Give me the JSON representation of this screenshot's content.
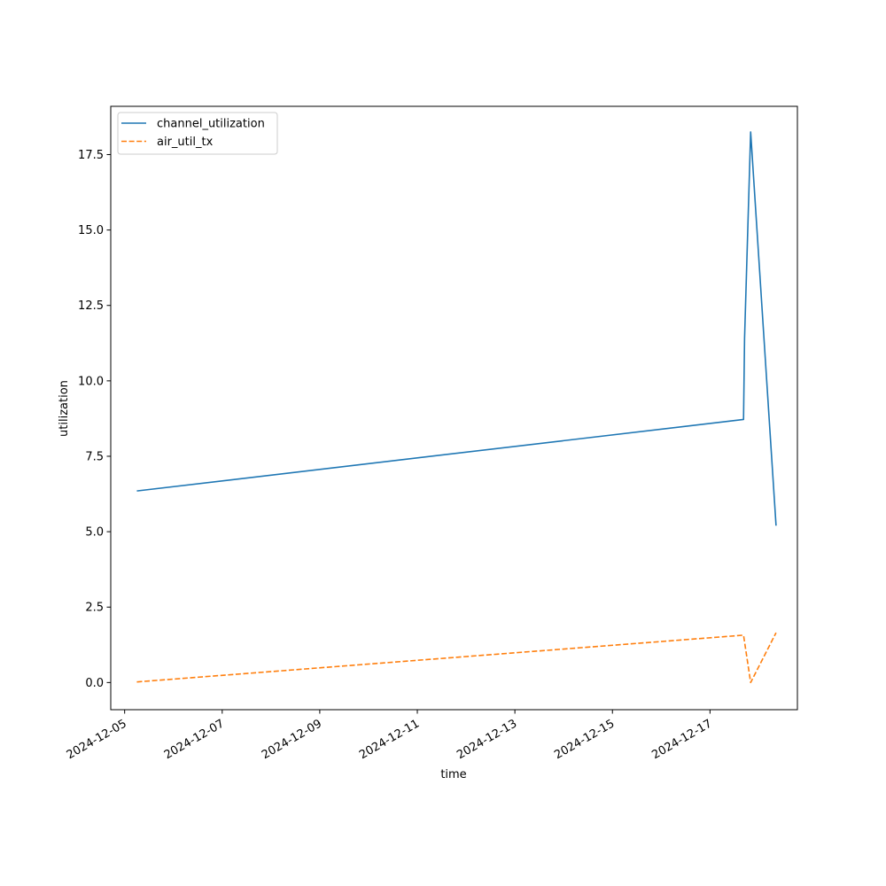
{
  "chart_data": {
    "type": "line",
    "xlabel": "time",
    "ylabel": "utilization",
    "xlim": [
      "2024-12-04T17:10",
      "2024-12-18T19:00"
    ],
    "ylim": [
      -0.9,
      19.1
    ],
    "x_ticks": [
      "2024-12-05",
      "2024-12-07",
      "2024-12-09",
      "2024-12-11",
      "2024-12-13",
      "2024-12-15",
      "2024-12-17"
    ],
    "y_ticks": [
      "0.0",
      "2.5",
      "5.0",
      "7.5",
      "10.0",
      "12.5",
      "15.0",
      "17.5"
    ],
    "legend": {
      "placement": "upper-left"
    },
    "grid": false,
    "series": [
      {
        "name": "channel_utilization",
        "color": "#1f77b4",
        "dash": "solid",
        "points": [
          {
            "x": "2024-12-05T06:00",
            "y": 6.35
          },
          {
            "x": "2024-12-17T16:30",
            "y": 8.72
          },
          {
            "x": "2024-12-17T17:00",
            "y": 11.4
          },
          {
            "x": "2024-12-17T20:00",
            "y": 18.25
          },
          {
            "x": "2024-12-18T08:30",
            "y": 5.2
          }
        ]
      },
      {
        "name": "air_util_tx",
        "color": "#ff7f0e",
        "dash": "dashed",
        "points": [
          {
            "x": "2024-12-05T06:00",
            "y": 0.02
          },
          {
            "x": "2024-12-17T16:30",
            "y": 1.57
          },
          {
            "x": "2024-12-17T20:00",
            "y": 0.0
          },
          {
            "x": "2024-12-18T08:30",
            "y": 1.65
          }
        ]
      }
    ]
  }
}
